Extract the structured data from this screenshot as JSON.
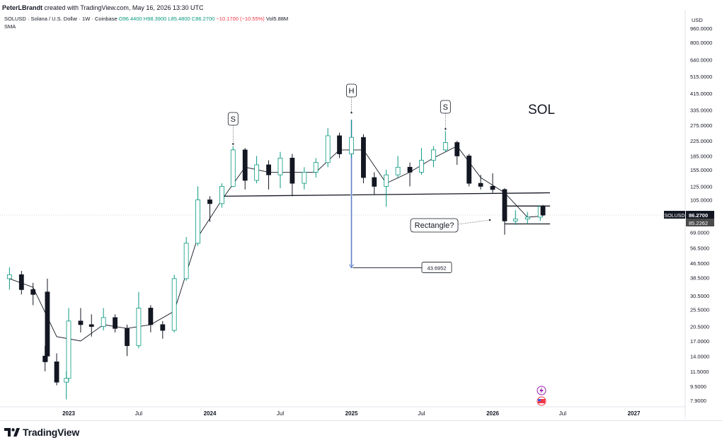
{
  "header": {
    "author": "PeterLBrandt",
    "credit_rest": " created with TradingView.com, May 16, 2026 13:30 UTC"
  },
  "legend": {
    "prefix": "SOLUSD · Solana / U.S. Dollar · 1W · Coinbase",
    "open": "O96.4400",
    "high": "H98.3900",
    "low": "L85.4800",
    "close": "C86.2700",
    "change": "−10.1700 (−10.55%)",
    "volume": "Vol5.88M",
    "indicator": "SMA"
  },
  "currency": "USD",
  "price_tag_symbol": "SOLUSD",
  "price_tag_close": "86.2700",
  "price_tag_sma": "85.2262",
  "branding": "TradingView",
  "annotations": {
    "title": "SOL",
    "left_shoulder": "S",
    "head": "H",
    "right_shoulder": "S",
    "target": "43.6952",
    "pattern": "Rectangle?"
  },
  "colors": {
    "up": "#089981",
    "down": "#131722",
    "sma": "#131722",
    "projection": "#5b7fc4",
    "price_tag_bg": "#131722",
    "sma_tag_bg": "#4a4a4a"
  },
  "chart_data": {
    "type": "candlestick",
    "symbol": "SOLUSD",
    "timeframe": "1W",
    "y_scale": "log",
    "y_ticks": [
      "960.0000",
      "800.0000",
      "640.0000",
      "515.0000",
      "415.0000",
      "335.0000",
      "275.0000",
      "225.0000",
      "185.0000",
      "155.0000",
      "125.0000",
      "105.0000",
      "86.2700",
      "69.0000",
      "56.5000",
      "46.5000",
      "38.5000",
      "30.5000",
      "25.5000",
      "20.5000",
      "17.0000",
      "14.0000",
      "11.5000",
      "9.5000",
      "7.9000"
    ],
    "x_ticks": [
      "2023",
      "Jul",
      "2024",
      "Jul",
      "2025",
      "Jul",
      "2026",
      "Jul",
      "2027"
    ],
    "bold_x_ticks": [
      "2023",
      "2024",
      "2025",
      "2026",
      "2027"
    ],
    "ohlc": [
      {
        "date": "2022-08",
        "o": 38.0,
        "h": 44.0,
        "l": 33.0,
        "c": 40.0
      },
      {
        "date": "2022-09",
        "o": 40.0,
        "h": 42.0,
        "l": 31.0,
        "c": 33.0
      },
      {
        "date": "2022-10",
        "o": 33.0,
        "h": 36.0,
        "l": 27.0,
        "c": 31.0
      },
      {
        "date": "2022-11-07",
        "o": 32.0,
        "h": 38.0,
        "l": 13.0,
        "c": 14.0
      },
      {
        "date": "2022-11",
        "o": 14.0,
        "h": 16.0,
        "l": 11.5,
        "c": 13.0
      },
      {
        "date": "2022-12",
        "o": 13.0,
        "h": 14.5,
        "l": 9.6,
        "c": 10.0
      },
      {
        "date": "2022-12-26",
        "o": 10.0,
        "h": 11.5,
        "l": 8.0,
        "c": 10.5
      },
      {
        "date": "2023-01",
        "o": 10.5,
        "h": 26.0,
        "l": 10.0,
        "c": 22.0
      },
      {
        "date": "2023-02",
        "o": 22.0,
        "h": 26.0,
        "l": 19.0,
        "c": 21.0
      },
      {
        "date": "2023-03",
        "o": 21.0,
        "h": 24.0,
        "l": 18.0,
        "c": 20.5
      },
      {
        "date": "2023-04",
        "o": 20.5,
        "h": 26.0,
        "l": 19.5,
        "c": 23.0
      },
      {
        "date": "2023-05",
        "o": 23.0,
        "h": 24.0,
        "l": 19.0,
        "c": 20.0
      },
      {
        "date": "2023-06",
        "o": 20.0,
        "h": 21.0,
        "l": 14.0,
        "c": 16.0
      },
      {
        "date": "2023-07",
        "o": 16.0,
        "h": 32.0,
        "l": 15.5,
        "c": 26.0
      },
      {
        "date": "2023-08",
        "o": 26.0,
        "h": 27.0,
        "l": 19.0,
        "c": 21.0
      },
      {
        "date": "2023-09",
        "o": 21.0,
        "h": 22.0,
        "l": 17.5,
        "c": 19.5
      },
      {
        "date": "2023-10",
        "o": 19.5,
        "h": 40.0,
        "l": 19.0,
        "c": 38.0
      },
      {
        "date": "2023-11",
        "o": 38.0,
        "h": 65.0,
        "l": 37.0,
        "c": 60.0
      },
      {
        "date": "2023-12",
        "o": 60.0,
        "h": 125.0,
        "l": 58.0,
        "c": 105.0
      },
      {
        "date": "2024-01",
        "o": 105.0,
        "h": 110.0,
        "l": 79.0,
        "c": 100.0
      },
      {
        "date": "2024-02",
        "o": 100.0,
        "h": 130.0,
        "l": 95.0,
        "c": 125.0
      },
      {
        "date": "2024-03",
        "o": 125.0,
        "h": 210.0,
        "l": 124.0,
        "c": 200.0
      },
      {
        "date": "2024-04",
        "o": 200.0,
        "h": 205.0,
        "l": 120.0,
        "c": 135.0
      },
      {
        "date": "2024-05",
        "o": 135.0,
        "h": 185.0,
        "l": 130.0,
        "c": 165.0
      },
      {
        "date": "2024-06",
        "o": 165.0,
        "h": 175.0,
        "l": 120.0,
        "c": 145.0
      },
      {
        "date": "2024-07",
        "o": 145.0,
        "h": 195.0,
        "l": 122.0,
        "c": 180.0
      },
      {
        "date": "2024-08",
        "o": 180.0,
        "h": 190.0,
        "l": 110.0,
        "c": 130.0
      },
      {
        "date": "2024-09",
        "o": 130.0,
        "h": 160.0,
        "l": 120.0,
        "c": 150.0
      },
      {
        "date": "2024-10",
        "o": 150.0,
        "h": 180.0,
        "l": 140.0,
        "c": 170.0
      },
      {
        "date": "2024-11",
        "o": 170.0,
        "h": 265.0,
        "l": 160.0,
        "c": 240.0
      },
      {
        "date": "2024-12",
        "o": 240.0,
        "h": 250.0,
        "l": 180.0,
        "c": 190.0
      },
      {
        "date": "2025-01",
        "o": 190.0,
        "h": 295.0,
        "l": 180.0,
        "c": 235.0
      },
      {
        "date": "2025-02",
        "o": 235.0,
        "h": 245.0,
        "l": 130.0,
        "c": 140.0
      },
      {
        "date": "2025-03",
        "o": 140.0,
        "h": 150.0,
        "l": 112.0,
        "c": 125.0
      },
      {
        "date": "2025-04",
        "o": 125.0,
        "h": 155.0,
        "l": 96.0,
        "c": 145.0
      },
      {
        "date": "2025-05",
        "o": 145.0,
        "h": 185.0,
        "l": 140.0,
        "c": 160.0
      },
      {
        "date": "2025-06",
        "o": 160.0,
        "h": 170.0,
        "l": 125.0,
        "c": 150.0
      },
      {
        "date": "2025-07",
        "o": 150.0,
        "h": 205.0,
        "l": 145.0,
        "c": 175.0
      },
      {
        "date": "2025-08",
        "o": 175.0,
        "h": 210.0,
        "l": 160.0,
        "c": 200.0
      },
      {
        "date": "2025-09",
        "o": 200.0,
        "h": 255.0,
        "l": 195.0,
        "c": 220.0
      },
      {
        "date": "2025-10",
        "o": 220.0,
        "h": 225.0,
        "l": 165.0,
        "c": 185.0
      },
      {
        "date": "2025-11",
        "o": 185.0,
        "h": 190.0,
        "l": 125.0,
        "c": 130.0
      },
      {
        "date": "2025-12",
        "o": 130.0,
        "h": 145.0,
        "l": 120.0,
        "c": 125.0
      },
      {
        "date": "2026-01",
        "o": 125.0,
        "h": 148.0,
        "l": 115.0,
        "c": 120.0
      },
      {
        "date": "2026-02",
        "o": 120.0,
        "h": 122.0,
        "l": 67.0,
        "c": 80.0
      },
      {
        "date": "2026-03",
        "o": 80.0,
        "h": 92.0,
        "l": 76.0,
        "c": 82.0
      },
      {
        "date": "2026-04",
        "o": 82.0,
        "h": 90.0,
        "l": 77.0,
        "c": 84.0
      },
      {
        "date": "2026-05-04",
        "o": 84.0,
        "h": 97.0,
        "l": 80.0,
        "c": 96.44
      },
      {
        "date": "2026-05-11",
        "o": 96.44,
        "h": 98.39,
        "l": 85.48,
        "c": 86.27
      }
    ],
    "sma_series": [
      {
        "date": "2022-08",
        "v": 38.0
      },
      {
        "date": "2022-10",
        "v": 34.0
      },
      {
        "date": "2022-12",
        "v": 18.0
      },
      {
        "date": "2023-02",
        "v": 17.0
      },
      {
        "date": "2023-04",
        "v": 21.0
      },
      {
        "date": "2023-06",
        "v": 20.0
      },
      {
        "date": "2023-08",
        "v": 21.0
      },
      {
        "date": "2023-10",
        "v": 25.0
      },
      {
        "date": "2023-12",
        "v": 65.0
      },
      {
        "date": "2024-02",
        "v": 105.0
      },
      {
        "date": "2024-04",
        "v": 160.0
      },
      {
        "date": "2024-06",
        "v": 150.0
      },
      {
        "date": "2024-08",
        "v": 150.0
      },
      {
        "date": "2024-10",
        "v": 150.0
      },
      {
        "date": "2024-12",
        "v": 200.0
      },
      {
        "date": "2025-02",
        "v": 200.0
      },
      {
        "date": "2025-04",
        "v": 130.0
      },
      {
        "date": "2025-06",
        "v": 150.0
      },
      {
        "date": "2025-08",
        "v": 180.0
      },
      {
        "date": "2025-10",
        "v": 210.0
      },
      {
        "date": "2025-12",
        "v": 140.0
      },
      {
        "date": "2026-02",
        "v": 115.0
      },
      {
        "date": "2026-04",
        "v": 84.0
      },
      {
        "date": "2026-05-11",
        "v": 85.2262
      }
    ],
    "neckline": {
      "from_date": "2024-02",
      "from_price": 110.0,
      "to_date": "2026-05-11",
      "to_price": 115.0
    },
    "rectangle": {
      "from_date": "2026-02",
      "to_date": "2026-05-11",
      "top": 97.0,
      "bottom": 77.0
    },
    "head_and_shoulders": {
      "left_shoulder": {
        "date": "2024-03",
        "price": 210.0
      },
      "head": {
        "date": "2025-01",
        "price": 295.0
      },
      "right_shoulder": {
        "date": "2025-09",
        "price": 255.0
      }
    },
    "projection": {
      "date": "2025-01",
      "from": 295.0,
      "to": 43.6952
    }
  }
}
